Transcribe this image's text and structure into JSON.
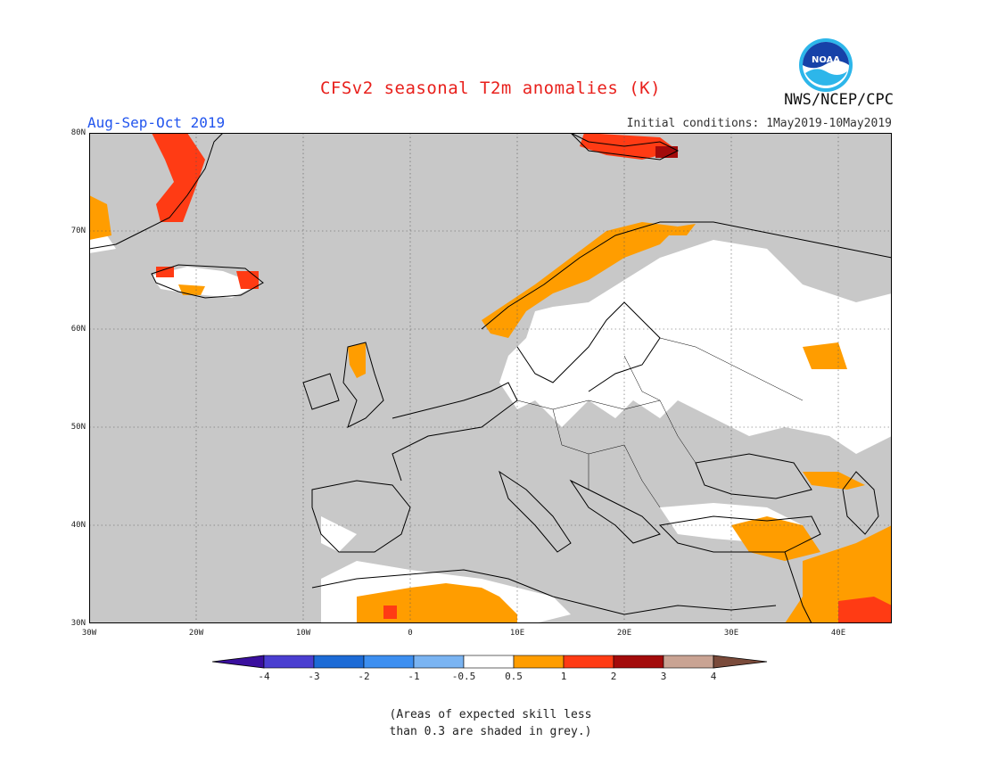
{
  "title": "CFSv2 seasonal T2m anomalies (K)",
  "period": "Aug-Sep-Oct 2019",
  "initial_conditions": "Initial conditions: 1May2019-10May2019",
  "agency": "NWS/NCEP/CPC",
  "logo_text": "NOAA",
  "colors": {
    "grey_skill": "#c8c8c8",
    "neutral": "#ffffff",
    "p05_1": "#ff9d00",
    "p1_2": "#ff3b14",
    "p2_3": "#a30b0b",
    "p3_4": "#c9a393",
    "n05_1": "#7ab4f2",
    "n1_2": "#3d8ff0",
    "n2_3": "#1d6bd6",
    "n3_4": "#4a3ed0",
    "n4": "#3a0f9e",
    "p4": "#7a4a3a"
  },
  "map": {
    "lon_range": [
      -30,
      45
    ],
    "lat_range": [
      30,
      80
    ],
    "y_ticks": [
      "30N",
      "40N",
      "50N",
      "60N",
      "70N",
      "80N"
    ],
    "x_ticks": [
      "30W",
      "20W",
      "10W",
      "0",
      "10E",
      "20E",
      "30E",
      "40E"
    ]
  },
  "colorbar": {
    "labels": [
      "-4",
      "-3",
      "-2",
      "-1",
      "-0.5",
      "0.5",
      "1",
      "2",
      "3",
      "4"
    ]
  },
  "note_lines": [
    "(Areas of expected skill less",
    "than 0.3 are shaded in grey.)"
  ]
}
